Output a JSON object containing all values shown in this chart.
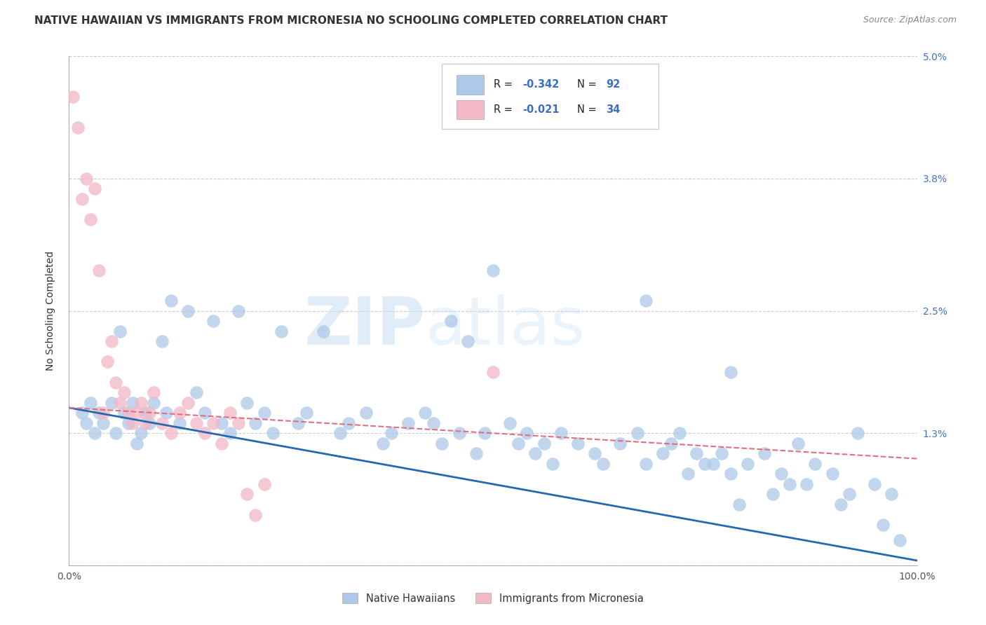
{
  "title": "NATIVE HAWAIIAN VS IMMIGRANTS FROM MICRONESIA NO SCHOOLING COMPLETED CORRELATION CHART",
  "source": "Source: ZipAtlas.com",
  "ylabel": "No Schooling Completed",
  "watermark_zip": "ZIP",
  "watermark_atlas": "atlas",
  "xlim": [
    0.0,
    100.0
  ],
  "ylim": [
    0.0,
    5.0
  ],
  "yticks": [
    0.0,
    1.3,
    2.5,
    3.8,
    5.0
  ],
  "xtick_labels": [
    "0.0%",
    "",
    "",
    "",
    "100.0%"
  ],
  "blue_color": "#adc8e8",
  "pink_color": "#f2b8c6",
  "blue_line_color": "#2468b0",
  "pink_line_color": "#e07080",
  "blue_trend_x0": 0.0,
  "blue_trend_y0": 1.55,
  "blue_trend_x1": 100.0,
  "blue_trend_y1": 0.05,
  "pink_trend_x0": 0.0,
  "pink_trend_y0": 1.55,
  "pink_trend_x1": 100.0,
  "pink_trend_y1": 1.05,
  "background_color": "#ffffff",
  "grid_color": "#cccccc",
  "blue_x": [
    1.5,
    2.0,
    2.5,
    3.0,
    3.5,
    4.0,
    5.0,
    5.5,
    6.0,
    6.5,
    7.0,
    7.5,
    8.0,
    8.5,
    9.0,
    9.5,
    10.0,
    11.0,
    11.5,
    12.0,
    13.0,
    14.0,
    15.0,
    16.0,
    17.0,
    18.0,
    19.0,
    20.0,
    21.0,
    22.0,
    23.0,
    24.0,
    25.0,
    27.0,
    28.0,
    30.0,
    32.0,
    33.0,
    35.0,
    37.0,
    38.0,
    40.0,
    42.0,
    43.0,
    44.0,
    45.0,
    46.0,
    47.0,
    48.0,
    49.0,
    50.0,
    52.0,
    53.0,
    54.0,
    55.0,
    56.0,
    57.0,
    58.0,
    60.0,
    62.0,
    63.0,
    65.0,
    67.0,
    68.0,
    70.0,
    71.0,
    73.0,
    75.0,
    77.0,
    78.0,
    80.0,
    82.0,
    84.0,
    85.0,
    86.0,
    88.0,
    90.0,
    92.0,
    93.0,
    95.0,
    97.0,
    98.0,
    68.0,
    72.0,
    74.0,
    76.0,
    78.0,
    79.0,
    83.0,
    87.0,
    91.0,
    96.0
  ],
  "blue_y": [
    1.5,
    1.4,
    1.6,
    1.3,
    1.5,
    1.4,
    1.6,
    1.3,
    2.3,
    1.5,
    1.4,
    1.6,
    1.2,
    1.3,
    1.5,
    1.4,
    1.6,
    2.2,
    1.5,
    2.6,
    1.4,
    2.5,
    1.7,
    1.5,
    2.4,
    1.4,
    1.3,
    2.5,
    1.6,
    1.4,
    1.5,
    1.3,
    2.3,
    1.4,
    1.5,
    2.3,
    1.3,
    1.4,
    1.5,
    1.2,
    1.3,
    1.4,
    1.5,
    1.4,
    1.2,
    2.4,
    1.3,
    2.2,
    1.1,
    1.3,
    2.9,
    1.4,
    1.2,
    1.3,
    1.1,
    1.2,
    1.0,
    1.3,
    1.2,
    1.1,
    1.0,
    1.2,
    1.3,
    1.0,
    1.1,
    1.2,
    0.9,
    1.0,
    1.1,
    1.9,
    1.0,
    1.1,
    0.9,
    0.8,
    1.2,
    1.0,
    0.9,
    0.7,
    1.3,
    0.8,
    0.7,
    0.25,
    2.6,
    1.3,
    1.1,
    1.0,
    0.9,
    0.6,
    0.7,
    0.8,
    0.6,
    0.4
  ],
  "pink_x": [
    0.5,
    1.0,
    1.5,
    2.0,
    2.5,
    3.0,
    3.5,
    4.0,
    4.5,
    5.0,
    5.5,
    6.0,
    6.5,
    7.0,
    7.5,
    8.0,
    8.5,
    9.0,
    9.5,
    10.0,
    11.0,
    12.0,
    13.0,
    14.0,
    15.0,
    16.0,
    17.0,
    18.0,
    19.0,
    20.0,
    21.0,
    22.0,
    23.0,
    50.0
  ],
  "pink_y": [
    4.6,
    4.3,
    3.6,
    3.8,
    3.4,
    3.7,
    2.9,
    1.5,
    2.0,
    2.2,
    1.8,
    1.6,
    1.7,
    1.5,
    1.4,
    1.5,
    1.6,
    1.4,
    1.5,
    1.7,
    1.4,
    1.3,
    1.5,
    1.6,
    1.4,
    1.3,
    1.4,
    1.2,
    1.5,
    1.4,
    0.7,
    0.5,
    0.8,
    1.9
  ]
}
